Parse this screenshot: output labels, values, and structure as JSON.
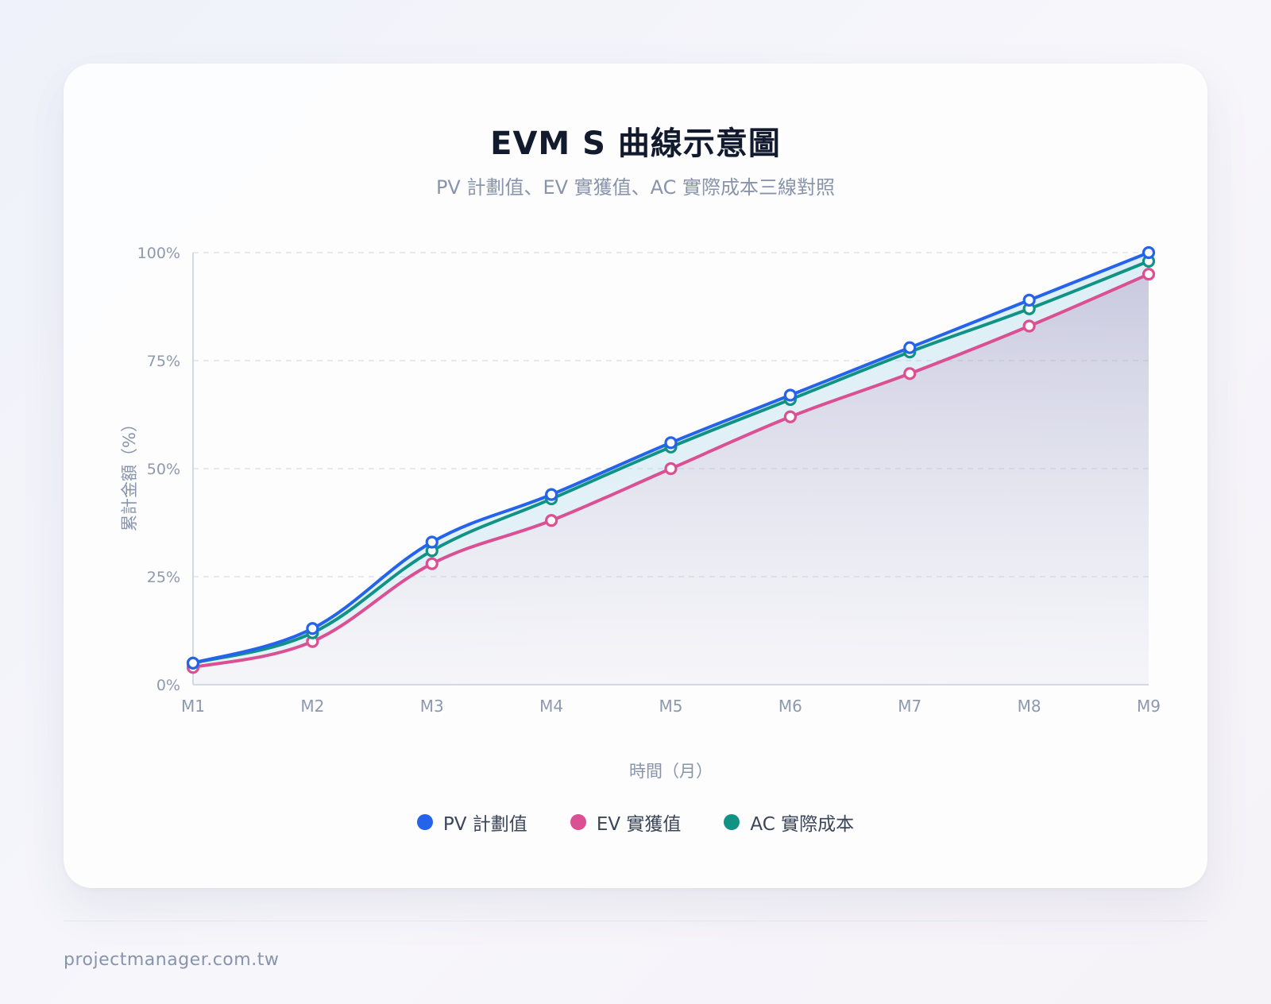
{
  "page": {
    "footer": "projectmanager.com.tw"
  },
  "chart_data": {
    "type": "line",
    "title": "EVM S 曲線示意圖",
    "subtitle": "PV 計劃值、EV 實獲值、AC 實際成本三線對照",
    "xlabel": "時間（月）",
    "ylabel": "累計金額（%）",
    "categories": [
      "M1",
      "M2",
      "M3",
      "M4",
      "M5",
      "M6",
      "M7",
      "M8",
      "M9"
    ],
    "y_ticks": [
      0,
      25,
      50,
      75,
      100
    ],
    "y_tick_labels": [
      "0%",
      "25%",
      "50%",
      "75%",
      "100%"
    ],
    "ylim": [
      0,
      100
    ],
    "grid": true,
    "legend_position": "bottom-center",
    "series": [
      {
        "name": "PV 計劃值",
        "color": "#2563eb",
        "values": [
          5,
          13,
          33,
          44,
          56,
          67,
          78,
          89,
          100
        ]
      },
      {
        "name": "EV 實獲值",
        "color": "#db4f93",
        "values": [
          4,
          10,
          28,
          38,
          50,
          62,
          72,
          83,
          95
        ]
      },
      {
        "name": "AC 實際成本",
        "color": "#109384",
        "values": [
          5,
          12,
          31,
          43,
          55,
          66,
          77,
          87,
          98
        ]
      }
    ]
  }
}
